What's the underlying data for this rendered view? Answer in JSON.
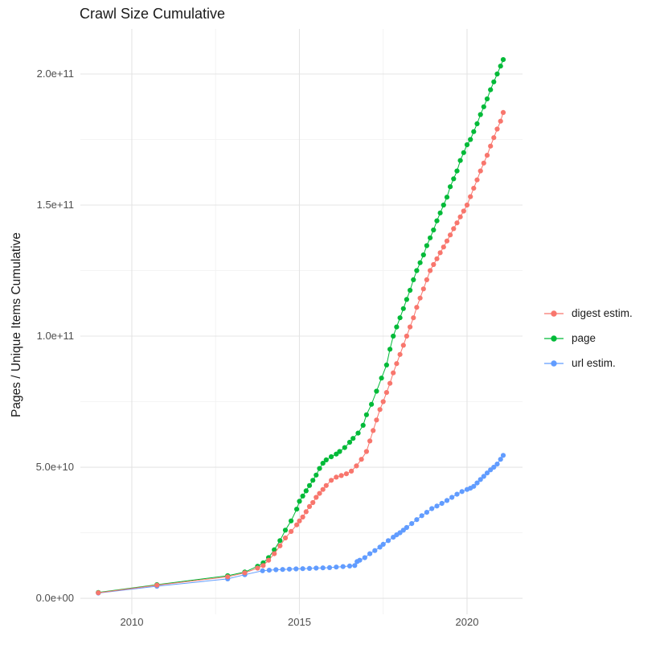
{
  "title": "Crawl Size Cumulative",
  "axes": {
    "y_label": "Pages / Unique Items Cumulative",
    "y_ticks": [
      "0.0e+00",
      "5.0e+10",
      "1.0e+11",
      "1.5e+11",
      "2.0e+11"
    ],
    "x_ticks": [
      "2010",
      "2015",
      "2020"
    ]
  },
  "legend": {
    "items": [
      {
        "label": "digest estim.",
        "color": "#F8766D"
      },
      {
        "label": "page",
        "color": "#00BA38"
      },
      {
        "label": "url estim.",
        "color": "#619CFF"
      }
    ]
  },
  "chart_data": {
    "type": "line",
    "title": "Crawl Size Cumulative",
    "xlabel": "",
    "ylabel": "Pages / Unique Items Cumulative",
    "xlim": [
      2008.466,
      2021.655
    ],
    "ylim": [
      -6130000000.0,
      217180000000.0
    ],
    "x_major": [
      2010,
      2015,
      2020
    ],
    "x_minor": [
      2012.5,
      2017.5
    ],
    "y_major": [
      0,
      50000000000.0,
      100000000000.0,
      150000000000.0,
      200000000000.0
    ],
    "y_minor": [
      25000000000.0,
      75000000000.0,
      125000000000.0,
      175000000000.0
    ],
    "grid": true,
    "legend_position": "right",
    "series": [
      {
        "name": "digest estim.",
        "color": "#F8766D",
        "points": [
          [
            2009,
            2100000000.0
          ],
          [
            2010.75,
            5000000000.0
          ],
          [
            2012.86,
            8200000000.0
          ],
          [
            2013.37,
            9700000000.0
          ],
          [
            2013.75,
            11500000000.0
          ],
          [
            2013.92,
            12500000000.0
          ],
          [
            2014.08,
            14500000000.0
          ],
          [
            2014.25,
            17000000000.0
          ],
          [
            2014.42,
            20000000000.0
          ],
          [
            2014.58,
            23000000000.0
          ],
          [
            2014.75,
            25500000000.0
          ],
          [
            2014.92,
            28000000000.0
          ],
          [
            2015.0,
            29500000000.0
          ],
          [
            2015.1,
            31000000000.0
          ],
          [
            2015.2,
            33000000000.0
          ],
          [
            2015.3,
            35000000000.0
          ],
          [
            2015.4,
            36500000000.0
          ],
          [
            2015.5,
            38500000000.0
          ],
          [
            2015.6,
            40000000000.0
          ],
          [
            2015.7,
            41500000000.0
          ],
          [
            2015.8,
            43000000000.0
          ],
          [
            2015.95,
            45000000000.0
          ],
          [
            2016.1,
            46200000000.0
          ],
          [
            2016.25,
            46800000000.0
          ],
          [
            2016.4,
            47500000000.0
          ],
          [
            2016.55,
            48500000000.0
          ],
          [
            2016.7,
            50500000000.0
          ],
          [
            2016.85,
            53000000000.0
          ],
          [
            2017.0,
            56000000000.0
          ],
          [
            2017.1,
            60000000000.0
          ],
          [
            2017.2,
            64000000000.0
          ],
          [
            2017.3,
            68000000000.0
          ],
          [
            2017.4,
            72000000000.0
          ],
          [
            2017.5,
            75000000000.0
          ],
          [
            2017.6,
            78500000000.0
          ],
          [
            2017.7,
            82000000000.0
          ],
          [
            2017.8,
            86000000000.0
          ],
          [
            2017.9,
            89500000000.0
          ],
          [
            2018.0,
            93000000000.0
          ],
          [
            2018.1,
            96500000000.0
          ],
          [
            2018.2,
            100000000000.0
          ],
          [
            2018.3,
            103500000000.0
          ],
          [
            2018.4,
            107000000000.0
          ],
          [
            2018.5,
            111000000000.0
          ],
          [
            2018.6,
            114500000000.0
          ],
          [
            2018.7,
            118000000000.0
          ],
          [
            2018.8,
            121500000000.0
          ],
          [
            2018.9,
            125000000000.0
          ],
          [
            2019.0,
            127300000000.0
          ],
          [
            2019.1,
            129500000000.0
          ],
          [
            2019.2,
            131800000000.0
          ],
          [
            2019.3,
            134000000000.0
          ],
          [
            2019.4,
            136300000000.0
          ],
          [
            2019.5,
            138600000000.0
          ],
          [
            2019.6,
            141000000000.0
          ],
          [
            2019.7,
            143200000000.0
          ],
          [
            2019.8,
            145500000000.0
          ],
          [
            2019.9,
            147700000000.0
          ],
          [
            2020.0,
            150000000000.0
          ],
          [
            2020.1,
            153200000000.0
          ],
          [
            2020.2,
            156400000000.0
          ],
          [
            2020.3,
            159600000000.0
          ],
          [
            2020.4,
            163000000000.0
          ],
          [
            2020.5,
            166000000000.0
          ],
          [
            2020.6,
            169000000000.0
          ],
          [
            2020.7,
            172500000000.0
          ],
          [
            2020.8,
            175700000000.0
          ],
          [
            2020.9,
            179000000000.0
          ],
          [
            2021.0,
            182000000000.0
          ],
          [
            2021.08,
            185300000000.0
          ]
        ]
      },
      {
        "name": "page",
        "color": "#00BA38",
        "points": [
          [
            2009,
            2200000000.0
          ],
          [
            2010.75,
            5200000000.0
          ],
          [
            2012.86,
            8600000000.0
          ],
          [
            2013.37,
            10000000000.0
          ],
          [
            2013.75,
            12200000000.0
          ],
          [
            2013.92,
            13500000000.0
          ],
          [
            2014.08,
            15500000000.0
          ],
          [
            2014.25,
            18500000000.0
          ],
          [
            2014.42,
            22000000000.0
          ],
          [
            2014.58,
            26000000000.0
          ],
          [
            2014.75,
            29500000000.0
          ],
          [
            2014.92,
            34000000000.0
          ],
          [
            2015.0,
            37000000000.0
          ],
          [
            2015.1,
            39000000000.0
          ],
          [
            2015.2,
            41000000000.0
          ],
          [
            2015.3,
            43000000000.0
          ],
          [
            2015.4,
            45000000000.0
          ],
          [
            2015.5,
            47000000000.0
          ],
          [
            2015.6,
            49500000000.0
          ],
          [
            2015.7,
            51500000000.0
          ],
          [
            2015.8,
            52800000000.0
          ],
          [
            2015.95,
            54000000000.0
          ],
          [
            2016.1,
            55000000000.0
          ],
          [
            2016.2,
            56000000000.0
          ],
          [
            2016.35,
            57500000000.0
          ],
          [
            2016.5,
            59500000000.0
          ],
          [
            2016.6,
            61000000000.0
          ],
          [
            2016.75,
            63000000000.0
          ],
          [
            2016.9,
            66000000000.0
          ],
          [
            2017.0,
            70000000000.0
          ],
          [
            2017.15,
            74000000000.0
          ],
          [
            2017.3,
            79000000000.0
          ],
          [
            2017.45,
            84000000000.0
          ],
          [
            2017.6,
            89000000000.0
          ],
          [
            2017.7,
            95000000000.0
          ],
          [
            2017.8,
            100000000000.0
          ],
          [
            2017.9,
            103500000000.0
          ],
          [
            2018.0,
            107000000000.0
          ],
          [
            2018.1,
            110500000000.0
          ],
          [
            2018.2,
            114000000000.0
          ],
          [
            2018.3,
            117500000000.0
          ],
          [
            2018.4,
            121500000000.0
          ],
          [
            2018.5,
            125000000000.0
          ],
          [
            2018.6,
            128000000000.0
          ],
          [
            2018.7,
            131000000000.0
          ],
          [
            2018.8,
            134500000000.0
          ],
          [
            2018.9,
            137500000000.0
          ],
          [
            2019.0,
            140500000000.0
          ],
          [
            2019.1,
            144000000000.0
          ],
          [
            2019.2,
            147000000000.0
          ],
          [
            2019.3,
            150000000000.0
          ],
          [
            2019.4,
            153000000000.0
          ],
          [
            2019.5,
            157000000000.0
          ],
          [
            2019.6,
            160000000000.0
          ],
          [
            2019.7,
            163000000000.0
          ],
          [
            2019.8,
            167000000000.0
          ],
          [
            2019.9,
            170000000000.0
          ],
          [
            2020.0,
            173000000000.0
          ],
          [
            2020.1,
            175000000000.0
          ],
          [
            2020.2,
            178000000000.0
          ],
          [
            2020.3,
            181000000000.0
          ],
          [
            2020.4,
            184500000000.0
          ],
          [
            2020.5,
            187500000000.0
          ],
          [
            2020.6,
            190500000000.0
          ],
          [
            2020.7,
            194000000000.0
          ],
          [
            2020.8,
            197000000000.0
          ],
          [
            2020.9,
            200000000000.0
          ],
          [
            2021.0,
            203000000000.0
          ],
          [
            2021.08,
            205500000000.0
          ]
        ]
      },
      {
        "name": "url estim.",
        "color": "#619CFF",
        "points": [
          [
            2009,
            2000000000.0
          ],
          [
            2010.75,
            4600000000.0
          ],
          [
            2012.86,
            7400000000.0
          ],
          [
            2013.37,
            9000000000.0
          ],
          [
            2013.9,
            10500000000.0
          ],
          [
            2014.1,
            10700000000.0
          ],
          [
            2014.3,
            10900000000.0
          ],
          [
            2014.5,
            11000000000.0
          ],
          [
            2014.7,
            11100000000.0
          ],
          [
            2014.9,
            11200000000.0
          ],
          [
            2015.1,
            11300000000.0
          ],
          [
            2015.3,
            11400000000.0
          ],
          [
            2015.5,
            11500000000.0
          ],
          [
            2015.7,
            11600000000.0
          ],
          [
            2015.9,
            11700000000.0
          ],
          [
            2016.1,
            11900000000.0
          ],
          [
            2016.3,
            12100000000.0
          ],
          [
            2016.5,
            12300000000.0
          ],
          [
            2016.65,
            12500000000.0
          ],
          [
            2016.72,
            14000000000.0
          ],
          [
            2016.8,
            14500000000.0
          ],
          [
            2016.95,
            15500000000.0
          ],
          [
            2017.1,
            17000000000.0
          ],
          [
            2017.25,
            18200000000.0
          ],
          [
            2017.4,
            19500000000.0
          ],
          [
            2017.5,
            20600000000.0
          ],
          [
            2017.65,
            22000000000.0
          ],
          [
            2017.8,
            23300000000.0
          ],
          [
            2017.9,
            24200000000.0
          ],
          [
            2018.0,
            25000000000.0
          ],
          [
            2018.1,
            26000000000.0
          ],
          [
            2018.2,
            27000000000.0
          ],
          [
            2018.35,
            28500000000.0
          ],
          [
            2018.5,
            30000000000.0
          ],
          [
            2018.65,
            31500000000.0
          ],
          [
            2018.8,
            32800000000.0
          ],
          [
            2018.95,
            34200000000.0
          ],
          [
            2019.1,
            35200000000.0
          ],
          [
            2019.25,
            36200000000.0
          ],
          [
            2019.4,
            37300000000.0
          ],
          [
            2019.55,
            38500000000.0
          ],
          [
            2019.7,
            39700000000.0
          ],
          [
            2019.85,
            40700000000.0
          ],
          [
            2020.0,
            41500000000.0
          ],
          [
            2020.1,
            42000000000.0
          ],
          [
            2020.2,
            42700000000.0
          ],
          [
            2020.3,
            44000000000.0
          ],
          [
            2020.4,
            45300000000.0
          ],
          [
            2020.5,
            46500000000.0
          ],
          [
            2020.6,
            47800000000.0
          ],
          [
            2020.7,
            49000000000.0
          ],
          [
            2020.8,
            50000000000.0
          ],
          [
            2020.9,
            51200000000.0
          ],
          [
            2021.0,
            53000000000.0
          ],
          [
            2021.08,
            54500000000.0
          ]
        ]
      }
    ]
  }
}
